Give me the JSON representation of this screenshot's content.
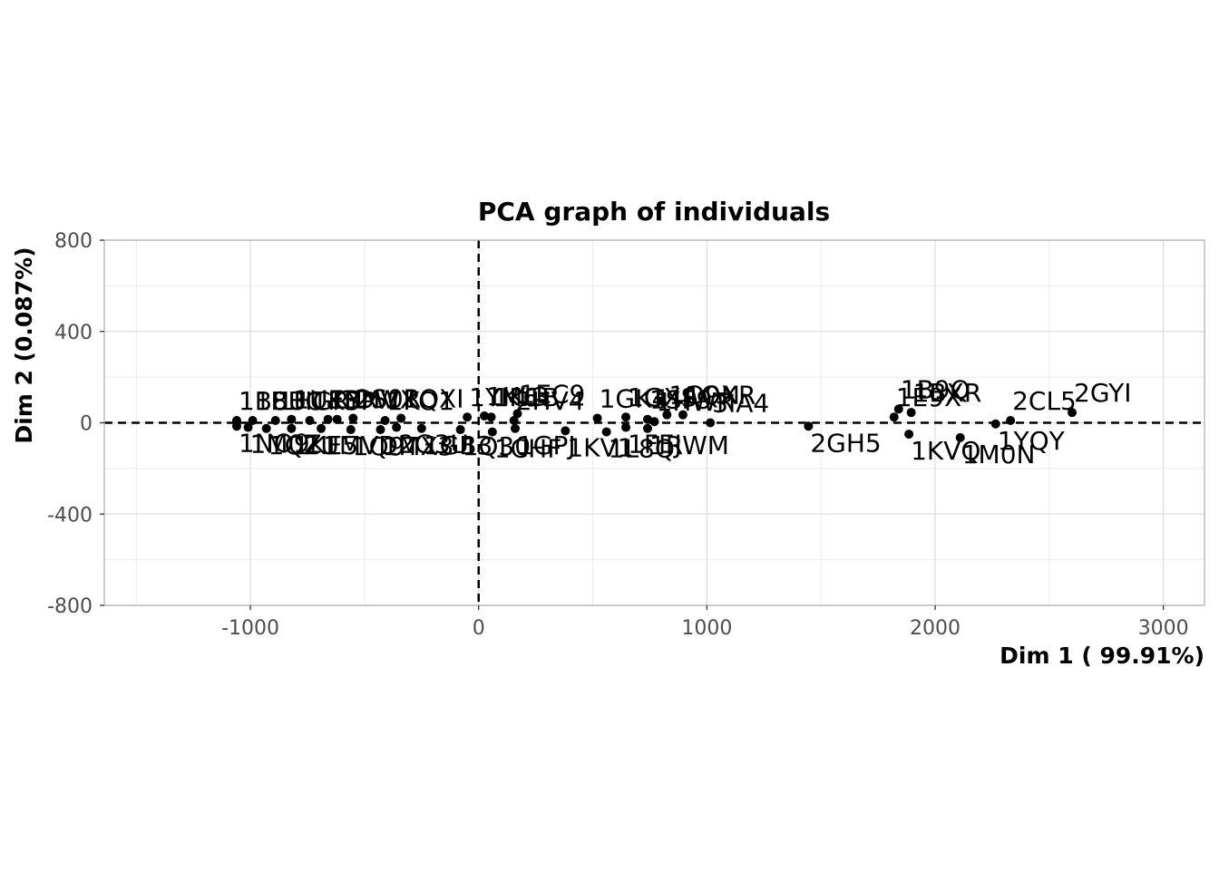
{
  "chart_data": {
    "type": "scatter",
    "title": "PCA graph of individuals",
    "xlabel": "Dim 1 ( 99.91%)",
    "ylabel": "Dim 2 (0.087%)",
    "xlim": [
      -1640,
      3180
    ],
    "ylim": [
      -800,
      800
    ],
    "x_ticks": [
      -1000,
      0,
      1000,
      2000,
      3000
    ],
    "x_tick_labels": [
      "-1000",
      "0",
      "1000",
      "2000",
      "3000"
    ],
    "y_ticks": [
      -800,
      -400,
      0,
      400,
      800
    ],
    "y_tick_labels": [
      "-800",
      "-400",
      "0",
      "400",
      "800"
    ],
    "grid": true,
    "reference_lines": {
      "x": 0,
      "y": 0,
      "style": "dashed"
    },
    "point_color": "#000000",
    "points": [
      {
        "x": 2600,
        "y": 45,
        "label": "2GYI"
      },
      {
        "x": 2330,
        "y": 10,
        "label": "2CL5"
      },
      {
        "x": 2265,
        "y": -5,
        "label": "1YQY"
      },
      {
        "x": 2110,
        "y": -65,
        "label": "1M0N"
      },
      {
        "x": 1885,
        "y": -50,
        "label": "1KVQ"
      },
      {
        "x": 1895,
        "y": 45,
        "label": "1BXR"
      },
      {
        "x": 1840,
        "y": 60,
        "label": "1B9Q"
      },
      {
        "x": 1820,
        "y": 25,
        "label": "1E9X"
      },
      {
        "x": 1445,
        "y": -15,
        "label": "2GH5"
      },
      {
        "x": 1015,
        "y": 0,
        "label": "3IA4"
      },
      {
        "x": 895,
        "y": 35,
        "label": "1QXR"
      },
      {
        "x": 825,
        "y": 35,
        "label": "1Q9N"
      },
      {
        "x": 770,
        "y": 5,
        "label": "1HWR"
      },
      {
        "x": 740,
        "y": 15,
        "label": "1SF9"
      },
      {
        "x": 740,
        "y": -25,
        "label": "1RWM"
      },
      {
        "x": 645,
        "y": 25,
        "label": "1GXS"
      },
      {
        "x": 520,
        "y": 20,
        "label": "1GK4"
      },
      {
        "x": 645,
        "y": -20,
        "label": "1FEJ"
      },
      {
        "x": 560,
        "y": -40,
        "label": "1L8Q"
      },
      {
        "x": 380,
        "y": -35,
        "label": "1KV1"
      },
      {
        "x": 170,
        "y": 40,
        "label": "1EC9"
      },
      {
        "x": 155,
        "y": 10,
        "label": "2HV4"
      },
      {
        "x": 55,
        "y": 25,
        "label": "1K1B"
      },
      {
        "x": 25,
        "y": 30,
        "label": "1KL3"
      },
      {
        "x": 160,
        "y": -25,
        "label": "1GPJ"
      },
      {
        "x": 60,
        "y": -40,
        "label": "1CHF"
      },
      {
        "x": -50,
        "y": 25,
        "label": "1YM6"
      },
      {
        "x": -340,
        "y": 20,
        "label": "1QXI"
      },
      {
        "x": -410,
        "y": 10,
        "label": "1KO1"
      },
      {
        "x": -550,
        "y": 20,
        "label": "2S0R"
      },
      {
        "x": -620,
        "y": 15,
        "label": "1DWX"
      },
      {
        "x": -660,
        "y": 15,
        "label": "1YNV"
      },
      {
        "x": -740,
        "y": 10,
        "label": "1K3P"
      },
      {
        "x": -820,
        "y": 15,
        "label": "1UEB"
      },
      {
        "x": -890,
        "y": 10,
        "label": "1HGR"
      },
      {
        "x": -990,
        "y": 10,
        "label": "1BBC"
      },
      {
        "x": -1060,
        "y": 10,
        "label": "1B8U"
      },
      {
        "x": -80,
        "y": -30,
        "label": "1Q30"
      },
      {
        "x": -250,
        "y": -25,
        "label": "1GB3"
      },
      {
        "x": -360,
        "y": -20,
        "label": "2G3U"
      },
      {
        "x": -430,
        "y": -30,
        "label": "1MX3"
      },
      {
        "x": -560,
        "y": -30,
        "label": "1Q9T"
      },
      {
        "x": -690,
        "y": -25,
        "label": "1MVD"
      },
      {
        "x": -820,
        "y": -25,
        "label": "1KE5"
      },
      {
        "x": -930,
        "y": -25,
        "label": "1Q2U"
      },
      {
        "x": -1010,
        "y": -20,
        "label": "1M0Z"
      },
      {
        "x": -1060,
        "y": -15,
        "label": "1NO9"
      }
    ]
  }
}
